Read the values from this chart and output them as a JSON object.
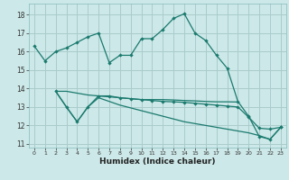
{
  "bg_color": "#cce8e8",
  "grid_color": "#aacccc",
  "line_color": "#1a7a6e",
  "xlabel": "Humidex (Indice chaleur)",
  "xlim": [
    -0.5,
    23.5
  ],
  "ylim": [
    10.8,
    18.6
  ],
  "yticks": [
    11,
    12,
    13,
    14,
    15,
    16,
    17,
    18
  ],
  "xticks": [
    0,
    1,
    2,
    3,
    4,
    5,
    6,
    7,
    8,
    9,
    10,
    11,
    12,
    13,
    14,
    15,
    16,
    17,
    18,
    19,
    20,
    21,
    22,
    23
  ],
  "line1_x": [
    0,
    1,
    2,
    3,
    4,
    5,
    6,
    7,
    8,
    9,
    10,
    11,
    12,
    13,
    14,
    15,
    16,
    17,
    18,
    19,
    20,
    21,
    22,
    23
  ],
  "line1_y": [
    16.3,
    15.5,
    16.0,
    16.2,
    16.5,
    16.8,
    17.0,
    15.4,
    15.8,
    15.8,
    16.7,
    16.7,
    17.2,
    17.8,
    18.05,
    17.0,
    16.6,
    15.8,
    15.1,
    13.3,
    12.5,
    11.4,
    11.25,
    11.9
  ],
  "line2_x": [
    2,
    3,
    4,
    5,
    6,
    7,
    8,
    9,
    10,
    11,
    12,
    13,
    14,
    15,
    16,
    17,
    18,
    19
  ],
  "line2_y": [
    13.85,
    13.85,
    13.75,
    13.65,
    13.6,
    13.55,
    13.5,
    13.45,
    13.4,
    13.4,
    13.4,
    13.38,
    13.35,
    13.33,
    13.3,
    13.28,
    13.28,
    13.27
  ],
  "line3_x": [
    2,
    3,
    4,
    5,
    6,
    7,
    8,
    9,
    10,
    11,
    12,
    13,
    14,
    15,
    16,
    17,
    18,
    19,
    20,
    21,
    22,
    23
  ],
  "line3_y": [
    13.85,
    13.0,
    12.2,
    13.0,
    13.6,
    13.6,
    13.5,
    13.45,
    13.4,
    13.35,
    13.3,
    13.28,
    13.25,
    13.2,
    13.15,
    13.1,
    13.05,
    13.0,
    12.45,
    11.85,
    11.8,
    11.9
  ],
  "line4_x": [
    2,
    3,
    4,
    5,
    6,
    7,
    8,
    9,
    10,
    11,
    12,
    13,
    14,
    15,
    16,
    17,
    18,
    19,
    20,
    21,
    22,
    23
  ],
  "line4_y": [
    13.85,
    13.0,
    12.2,
    13.0,
    13.5,
    13.3,
    13.1,
    12.95,
    12.8,
    12.65,
    12.5,
    12.35,
    12.2,
    12.1,
    12.0,
    11.9,
    11.8,
    11.7,
    11.6,
    11.45,
    11.25,
    11.9
  ]
}
